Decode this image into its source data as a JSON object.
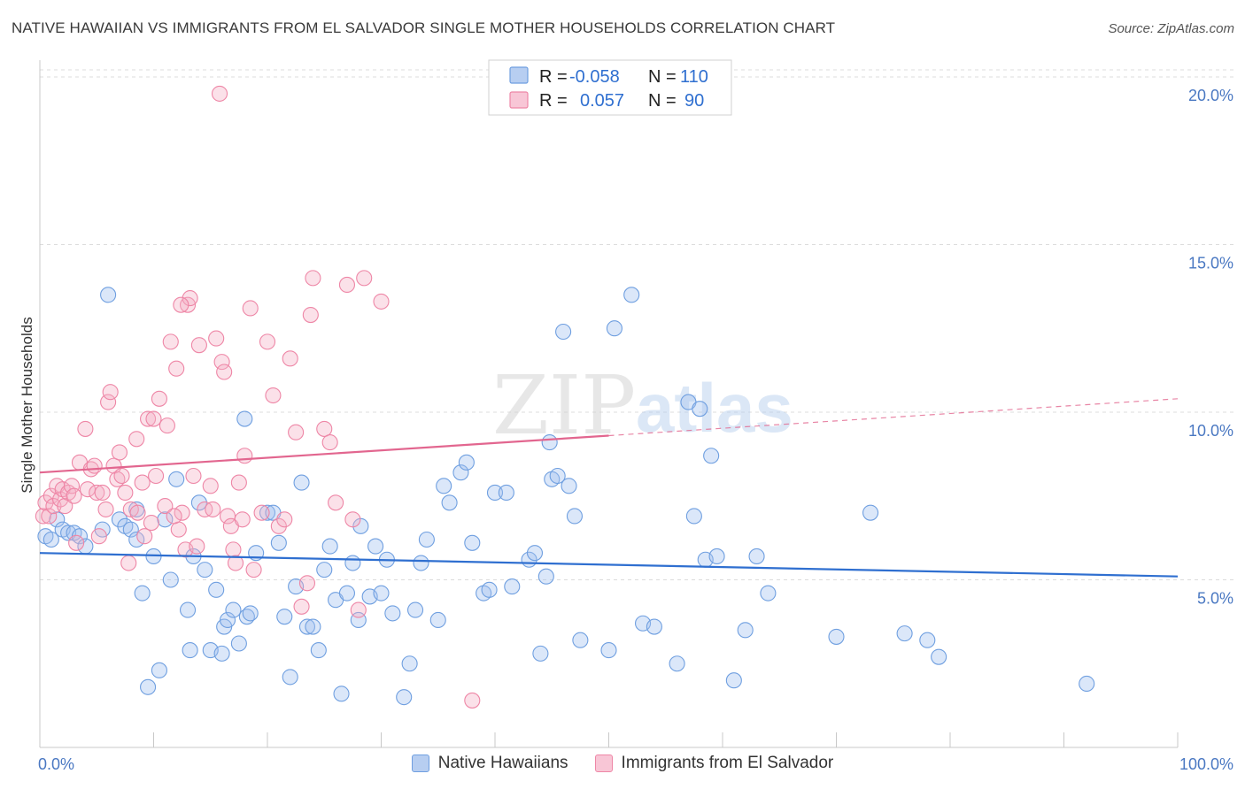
{
  "chart_data": {
    "type": "scatter",
    "title": "NATIVE HAWAIIAN VS IMMIGRANTS FROM EL SALVADOR SINGLE MOTHER HOUSEHOLDS CORRELATION CHART",
    "source": "Source: ZipAtlas.com",
    "ylabel": "Single Mother Households",
    "xlabel": "",
    "xlim": [
      0,
      100
    ],
    "ylim": [
      0,
      20.5
    ],
    "x_ticks": [
      {
        "value": 0,
        "label": "0.0%"
      },
      {
        "value": 100,
        "label": "100.0%"
      }
    ],
    "y_ticks": [
      {
        "value": 5,
        "label": "5.0%"
      },
      {
        "value": 10,
        "label": "10.0%"
      },
      {
        "value": 15,
        "label": "15.0%"
      },
      {
        "value": 20,
        "label": "20.0%"
      }
    ],
    "watermark": {
      "part1": "ZIP",
      "part2": "atlas"
    },
    "legend": {
      "r_label": "R =",
      "n_label": "N =",
      "entries": [
        {
          "r": "-0.058",
          "n": "110"
        },
        {
          "r": "0.057",
          "n": "90"
        }
      ]
    },
    "series": [
      {
        "name": "Native Hawaiians",
        "color": "#6f9fe0",
        "fill": "rgba(160,192,238,0.38)",
        "line_color": "#2f6fd0",
        "trend": {
          "x0": 0,
          "y0": 5.8,
          "x1": 100,
          "y1": 5.1,
          "dashed_from": null
        },
        "points": [
          [
            0.5,
            6.3
          ],
          [
            1,
            6.2
          ],
          [
            1.5,
            6.8
          ],
          [
            2,
            6.5
          ],
          [
            2.5,
            6.4
          ],
          [
            3,
            6.4
          ],
          [
            3.5,
            6.3
          ],
          [
            4,
            6.0
          ],
          [
            5.5,
            6.5
          ],
          [
            6,
            13.5
          ],
          [
            7,
            6.8
          ],
          [
            7.5,
            6.6
          ],
          [
            8,
            6.5
          ],
          [
            8.5,
            6.2
          ],
          [
            8.5,
            7.1
          ],
          [
            9,
            4.6
          ],
          [
            9.5,
            1.8
          ],
          [
            10,
            5.7
          ],
          [
            10.5,
            2.3
          ],
          [
            11,
            6.8
          ],
          [
            11.5,
            5.0
          ],
          [
            12,
            8.0
          ],
          [
            13,
            4.1
          ],
          [
            13.2,
            2.9
          ],
          [
            13.5,
            5.7
          ],
          [
            14,
            7.3
          ],
          [
            14.5,
            5.3
          ],
          [
            15,
            2.9
          ],
          [
            15.5,
            4.7
          ],
          [
            16,
            2.8
          ],
          [
            16.2,
            3.6
          ],
          [
            16.5,
            3.8
          ],
          [
            17,
            4.1
          ],
          [
            17.5,
            3.1
          ],
          [
            18,
            9.8
          ],
          [
            18.2,
            3.9
          ],
          [
            18.5,
            4.0
          ],
          [
            19,
            5.8
          ],
          [
            20,
            7.0
          ],
          [
            20.5,
            7.0
          ],
          [
            21,
            6.1
          ],
          [
            21.5,
            3.9
          ],
          [
            22,
            2.1
          ],
          [
            22.5,
            4.8
          ],
          [
            23,
            7.9
          ],
          [
            23.5,
            3.6
          ],
          [
            24,
            3.6
          ],
          [
            24.5,
            2.9
          ],
          [
            25,
            5.3
          ],
          [
            25.5,
            6.0
          ],
          [
            26,
            4.4
          ],
          [
            26.5,
            1.6
          ],
          [
            27,
            4.6
          ],
          [
            27.5,
            5.5
          ],
          [
            28,
            3.8
          ],
          [
            28.2,
            6.6
          ],
          [
            29,
            4.5
          ],
          [
            29.5,
            6.0
          ],
          [
            30,
            4.6
          ],
          [
            30.5,
            5.6
          ],
          [
            31,
            4.0
          ],
          [
            32,
            1.5
          ],
          [
            32.5,
            2.5
          ],
          [
            33,
            4.1
          ],
          [
            33.5,
            5.5
          ],
          [
            34,
            6.2
          ],
          [
            35,
            3.8
          ],
          [
            35.5,
            7.8
          ],
          [
            36,
            7.3
          ],
          [
            37,
            8.2
          ],
          [
            37.5,
            8.5
          ],
          [
            38,
            6.1
          ],
          [
            39,
            4.6
          ],
          [
            39.5,
            4.7
          ],
          [
            40,
            7.6
          ],
          [
            41,
            7.6
          ],
          [
            41.5,
            4.8
          ],
          [
            43,
            5.6
          ],
          [
            43.5,
            5.8
          ],
          [
            44,
            2.8
          ],
          [
            44.5,
            5.1
          ],
          [
            44.8,
            9.1
          ],
          [
            45,
            8.0
          ],
          [
            45.5,
            8.1
          ],
          [
            46,
            12.4
          ],
          [
            46.5,
            7.8
          ],
          [
            47,
            6.9
          ],
          [
            47.5,
            3.2
          ],
          [
            50,
            2.9
          ],
          [
            50.5,
            12.5
          ],
          [
            52,
            13.5
          ],
          [
            53,
            3.7
          ],
          [
            54,
            3.6
          ],
          [
            56,
            2.5
          ],
          [
            57,
            10.3
          ],
          [
            57.5,
            6.9
          ],
          [
            58,
            10.1
          ],
          [
            58.5,
            5.6
          ],
          [
            59,
            8.7
          ],
          [
            59.5,
            5.7
          ],
          [
            61,
            2.0
          ],
          [
            62,
            3.5
          ],
          [
            63,
            5.7
          ],
          [
            64,
            4.6
          ],
          [
            70,
            3.3
          ],
          [
            73,
            7.0
          ],
          [
            76,
            3.4
          ],
          [
            78,
            3.2
          ],
          [
            79,
            2.7
          ],
          [
            92,
            1.9
          ]
        ]
      },
      {
        "name": "Immigrants from El Salvador",
        "color": "#ee86a6",
        "fill": "rgba(244,176,198,0.38)",
        "line_color": "#e2668f",
        "trend": {
          "x0": 0,
          "y0": 8.2,
          "x1": 100,
          "y1": 10.4,
          "dashed_from": 50
        },
        "points": [
          [
            0.3,
            6.9
          ],
          [
            0.5,
            7.3
          ],
          [
            0.8,
            6.9
          ],
          [
            1,
            7.5
          ],
          [
            1.2,
            7.2
          ],
          [
            1.5,
            7.8
          ],
          [
            1.8,
            7.4
          ],
          [
            2,
            7.7
          ],
          [
            2.2,
            7.2
          ],
          [
            2.5,
            7.6
          ],
          [
            2.8,
            7.8
          ],
          [
            3,
            7.5
          ],
          [
            3.5,
            8.5
          ],
          [
            4,
            9.5
          ],
          [
            4.2,
            7.7
          ],
          [
            4.5,
            8.3
          ],
          [
            5,
            7.6
          ],
          [
            5.2,
            6.3
          ],
          [
            5.5,
            7.6
          ],
          [
            6,
            10.3
          ],
          [
            6.2,
            10.6
          ],
          [
            6.5,
            8.4
          ],
          [
            7,
            8.8
          ],
          [
            7.5,
            7.6
          ],
          [
            7.8,
            5.5
          ],
          [
            8,
            7.1
          ],
          [
            8.5,
            9.2
          ],
          [
            9,
            7.9
          ],
          [
            9.2,
            6.3
          ],
          [
            9.5,
            9.8
          ],
          [
            10,
            9.8
          ],
          [
            10.5,
            10.4
          ],
          [
            11,
            7.2
          ],
          [
            11.2,
            9.6
          ],
          [
            11.5,
            12.1
          ],
          [
            12,
            11.3
          ],
          [
            12.2,
            6.5
          ],
          [
            12.5,
            7.0
          ],
          [
            12.8,
            5.9
          ],
          [
            13,
            13.2
          ],
          [
            13.2,
            13.4
          ],
          [
            13.5,
            8.1
          ],
          [
            14,
            12.0
          ],
          [
            14.5,
            7.1
          ],
          [
            15,
            7.8
          ],
          [
            15.5,
            12.2
          ],
          [
            16,
            11.5
          ],
          [
            16.2,
            11.2
          ],
          [
            16.5,
            6.9
          ],
          [
            17,
            5.9
          ],
          [
            17.2,
            5.5
          ],
          [
            17.5,
            7.9
          ],
          [
            18,
            8.7
          ],
          [
            18.5,
            13.1
          ],
          [
            18.8,
            5.3
          ],
          [
            19.5,
            7.0
          ],
          [
            20,
            12.1
          ],
          [
            20.5,
            10.5
          ],
          [
            21,
            6.6
          ],
          [
            21.5,
            6.8
          ],
          [
            22,
            11.6
          ],
          [
            22.5,
            9.4
          ],
          [
            23,
            4.2
          ],
          [
            23.5,
            4.9
          ],
          [
            23.8,
            12.9
          ],
          [
            24,
            14.0
          ],
          [
            25,
            9.5
          ],
          [
            25.5,
            9.1
          ],
          [
            26,
            7.3
          ],
          [
            27,
            13.8
          ],
          [
            27.5,
            6.8
          ],
          [
            28,
            4.1
          ],
          [
            28.5,
            14.0
          ],
          [
            30,
            13.3
          ],
          [
            15.8,
            19.5
          ],
          [
            8.6,
            7.0
          ],
          [
            6.8,
            8.0
          ],
          [
            3.2,
            6.1
          ],
          [
            12.4,
            13.2
          ],
          [
            9.8,
            6.7
          ],
          [
            5.8,
            7.1
          ],
          [
            7.2,
            8.1
          ],
          [
            11.8,
            6.9
          ],
          [
            4.8,
            8.4
          ],
          [
            10.2,
            8.1
          ],
          [
            13.8,
            6.0
          ],
          [
            15.2,
            7.1
          ],
          [
            16.8,
            6.6
          ],
          [
            17.8,
            6.8
          ],
          [
            38,
            1.4
          ]
        ]
      }
    ]
  },
  "bottom_legend": [
    "Native Hawaiians",
    "Immigrants from El Salvador"
  ]
}
